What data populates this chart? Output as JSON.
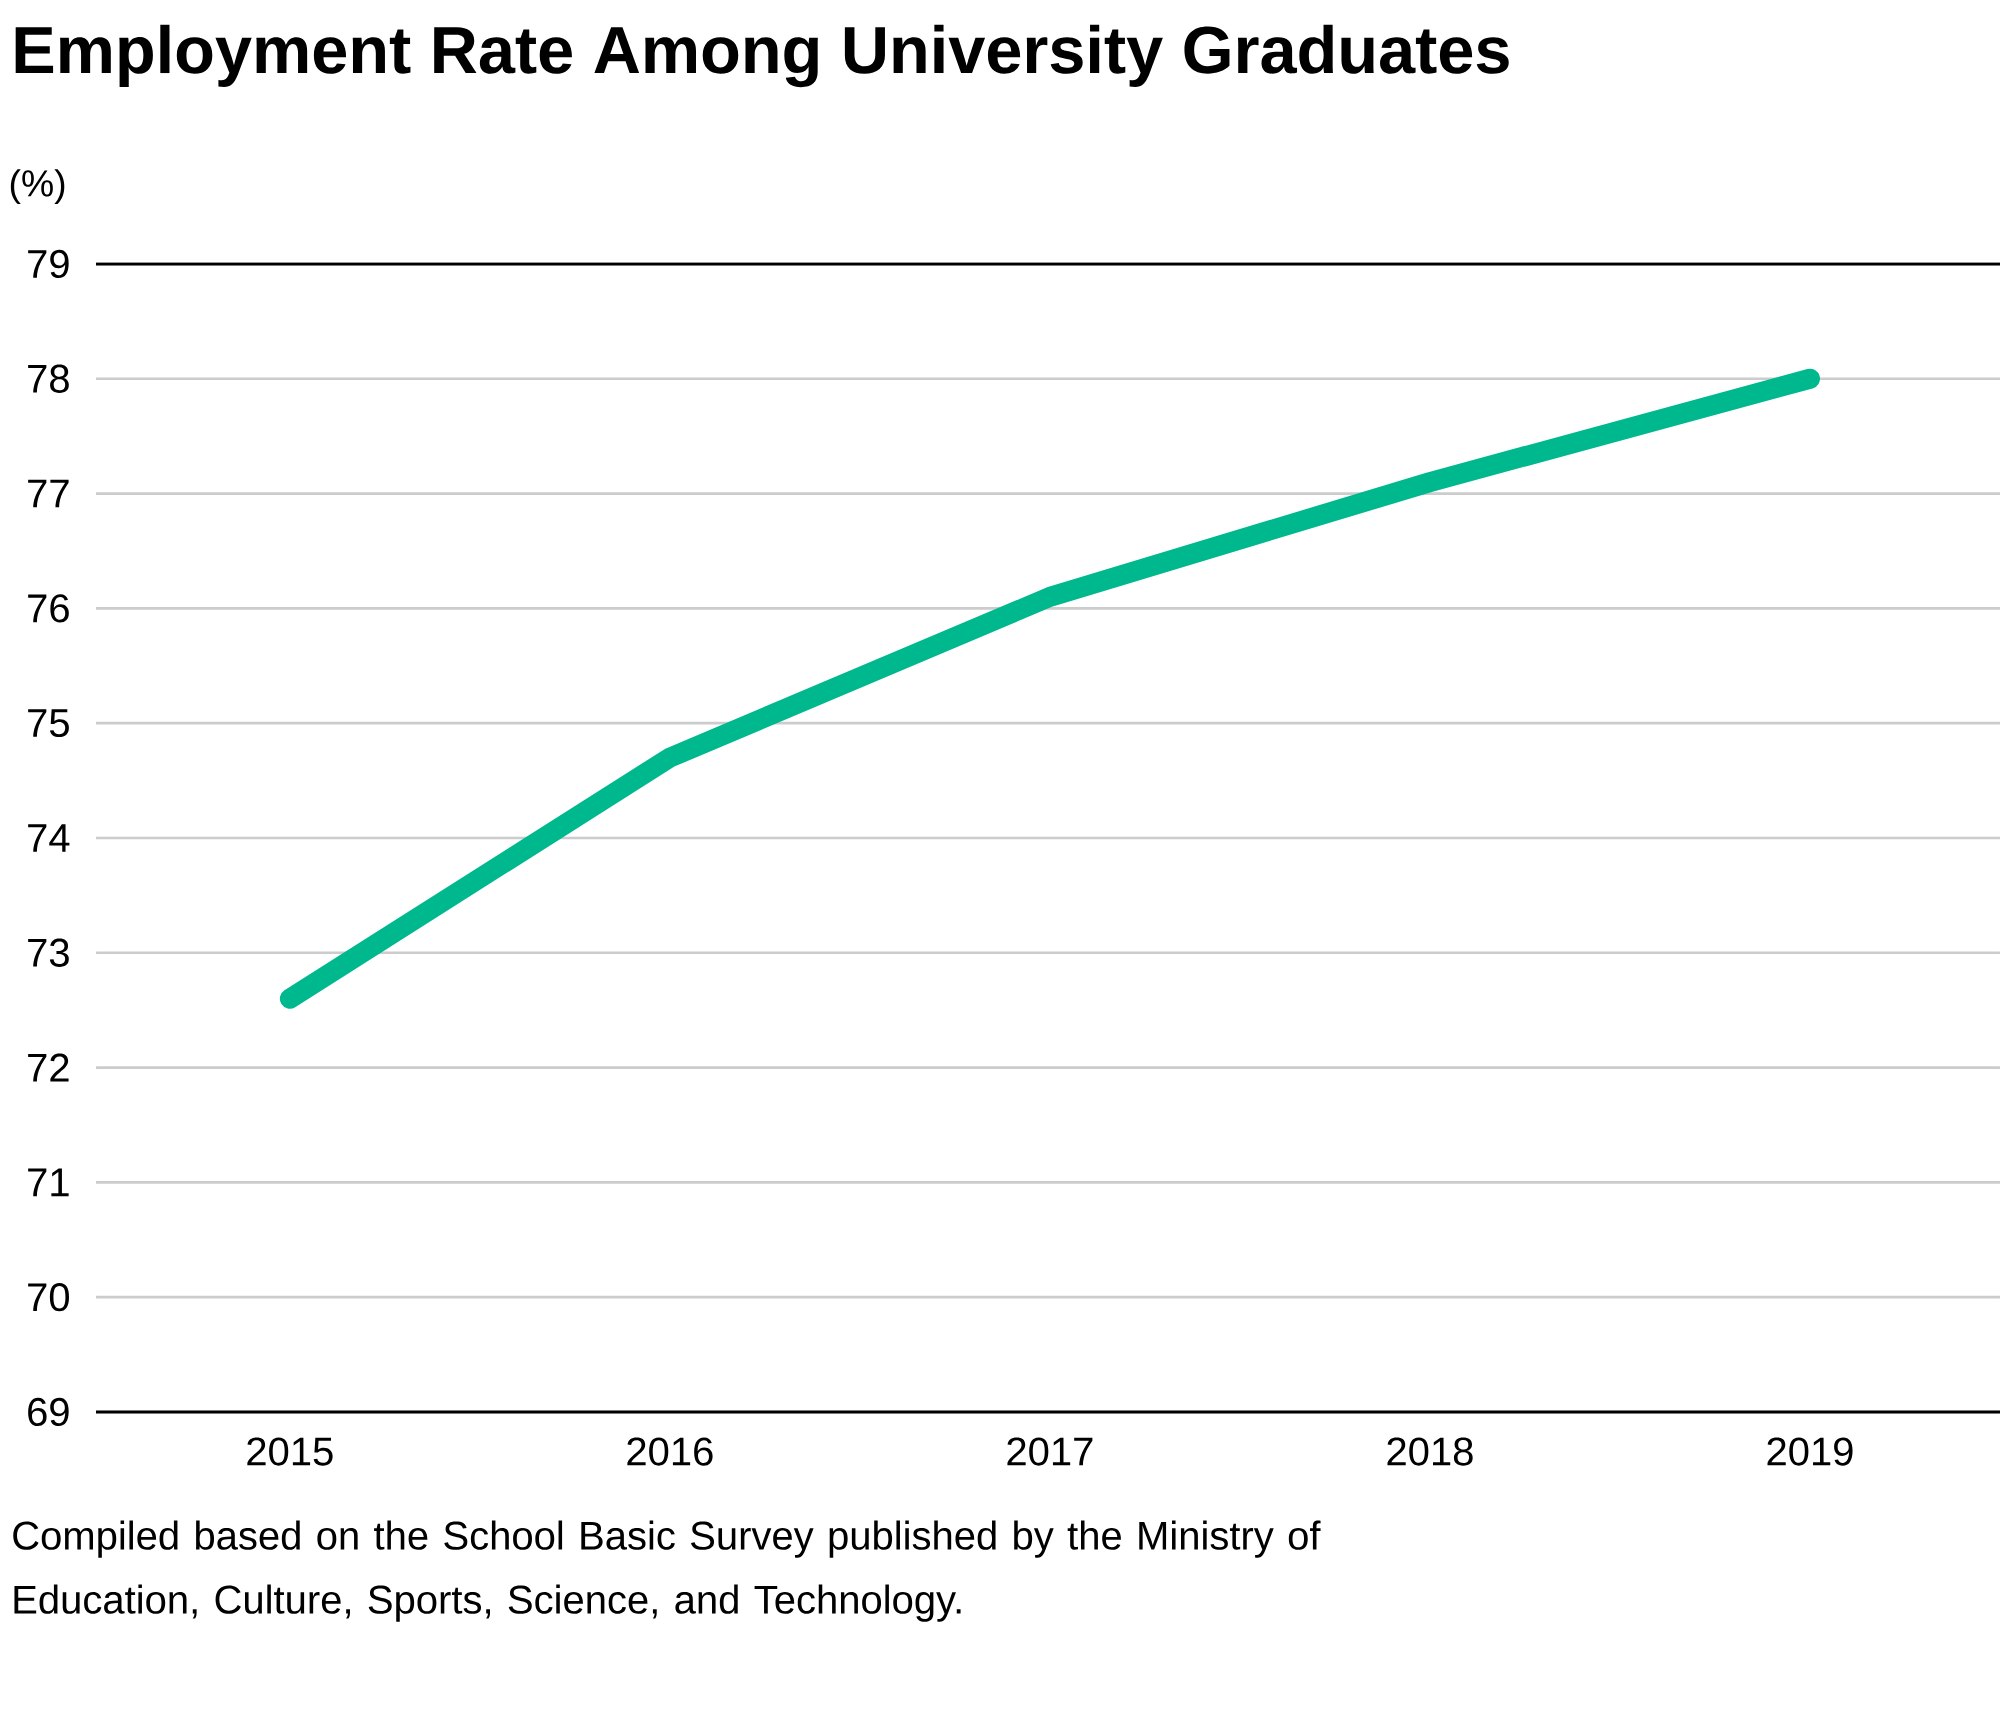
{
  "chart_data": {
    "type": "line",
    "title": "Employment Rate Among University Graduates",
    "ylabel": "(%)",
    "categories": [
      "2015",
      "2016",
      "2017",
      "2018",
      "2019"
    ],
    "series": [
      {
        "color": "#00b88d",
        "values": [
          72.6,
          74.7,
          76.1,
          77.1,
          78.0
        ]
      }
    ],
    "ylim": [
      69,
      79
    ],
    "yticks": [
      69,
      70,
      71,
      72,
      73,
      74,
      75,
      76,
      77,
      78,
      79
    ],
    "grid": "y",
    "marker": "none",
    "line_style": "solid",
    "annotations": [
      "Compiled based on the School Basic Survey published by the Ministry of Education, Culture, Sports, Science, and Technology."
    ]
  }
}
